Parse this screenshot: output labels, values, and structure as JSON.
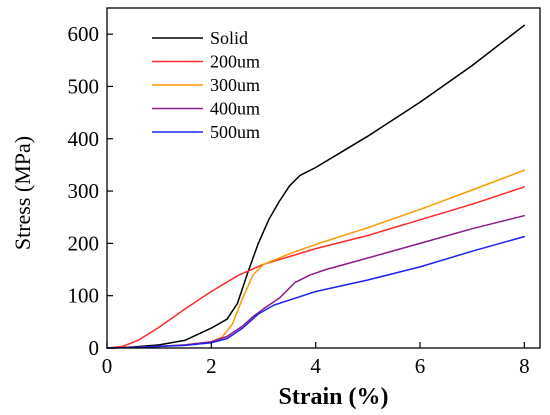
{
  "chart_data": {
    "type": "line",
    "title": "",
    "xlabel": "Strain (%)",
    "ylabel": "Stress (MPa)",
    "xlim": [
      0,
      8.3
    ],
    "ylim": [
      0,
      650
    ],
    "x_ticks": [
      0,
      2,
      4,
      6,
      8
    ],
    "y_ticks": [
      0,
      100,
      200,
      300,
      400,
      500,
      600
    ],
    "x_tick_labels": [
      "0",
      "2",
      "4",
      "6",
      "8"
    ],
    "y_tick_labels": [
      "0",
      "100",
      "200",
      "300",
      "400",
      "500",
      "600"
    ],
    "legend_position": "top-left",
    "grid": false,
    "series": [
      {
        "name": "Solid",
        "color": "#000000",
        "points": [
          [
            0,
            0
          ],
          [
            0.5,
            2
          ],
          [
            1.0,
            6
          ],
          [
            1.5,
            15
          ],
          [
            2.0,
            38
          ],
          [
            2.3,
            55
          ],
          [
            2.5,
            85
          ],
          [
            2.7,
            145
          ],
          [
            2.9,
            200
          ],
          [
            3.1,
            245
          ],
          [
            3.3,
            280
          ],
          [
            3.5,
            310
          ],
          [
            3.7,
            330
          ],
          [
            4.0,
            345
          ],
          [
            4.5,
            375
          ],
          [
            5.0,
            405
          ],
          [
            6.0,
            470
          ],
          [
            7.0,
            540
          ],
          [
            8.0,
            617
          ]
        ]
      },
      {
        "name": "200um",
        "color": "#ff2a2a",
        "points": [
          [
            0,
            0
          ],
          [
            0.3,
            3
          ],
          [
            0.6,
            15
          ],
          [
            1.0,
            40
          ],
          [
            1.5,
            75
          ],
          [
            2.0,
            108
          ],
          [
            2.5,
            138
          ],
          [
            3.0,
            160
          ],
          [
            3.5,
            175
          ],
          [
            4.0,
            190
          ],
          [
            5.0,
            215
          ],
          [
            6.0,
            245
          ],
          [
            7.0,
            275
          ],
          [
            8.0,
            308
          ]
        ]
      },
      {
        "name": "300um",
        "color": "#ff9900",
        "points": [
          [
            0,
            0
          ],
          [
            0.5,
            1
          ],
          [
            1.0,
            3
          ],
          [
            1.5,
            6
          ],
          [
            2.0,
            12
          ],
          [
            2.2,
            20
          ],
          [
            2.4,
            45
          ],
          [
            2.6,
            95
          ],
          [
            2.8,
            140
          ],
          [
            3.0,
            160
          ],
          [
            3.5,
            180
          ],
          [
            4.0,
            198
          ],
          [
            5.0,
            230
          ],
          [
            6.0,
            265
          ],
          [
            7.0,
            302
          ],
          [
            8.0,
            340
          ]
        ]
      },
      {
        "name": "400um",
        "color": "#8b1a8b",
        "points": [
          [
            0,
            0
          ],
          [
            0.5,
            1
          ],
          [
            1.0,
            3
          ],
          [
            1.5,
            6
          ],
          [
            2.0,
            12
          ],
          [
            2.3,
            22
          ],
          [
            2.6,
            42
          ],
          [
            2.8,
            60
          ],
          [
            3.0,
            75
          ],
          [
            3.3,
            95
          ],
          [
            3.6,
            125
          ],
          [
            3.9,
            140
          ],
          [
            4.2,
            150
          ],
          [
            5.0,
            172
          ],
          [
            6.0,
            200
          ],
          [
            7.0,
            228
          ],
          [
            8.0,
            253
          ]
        ]
      },
      {
        "name": "500um",
        "color": "#1e22ee",
        "points": [
          [
            0,
            0
          ],
          [
            0.5,
            1
          ],
          [
            1.0,
            3
          ],
          [
            1.5,
            5
          ],
          [
            2.0,
            10
          ],
          [
            2.3,
            18
          ],
          [
            2.6,
            38
          ],
          [
            2.9,
            65
          ],
          [
            3.2,
            82
          ],
          [
            3.6,
            95
          ],
          [
            4.0,
            108
          ],
          [
            5.0,
            130
          ],
          [
            6.0,
            155
          ],
          [
            7.0,
            185
          ],
          [
            8.0,
            213
          ]
        ]
      }
    ]
  }
}
